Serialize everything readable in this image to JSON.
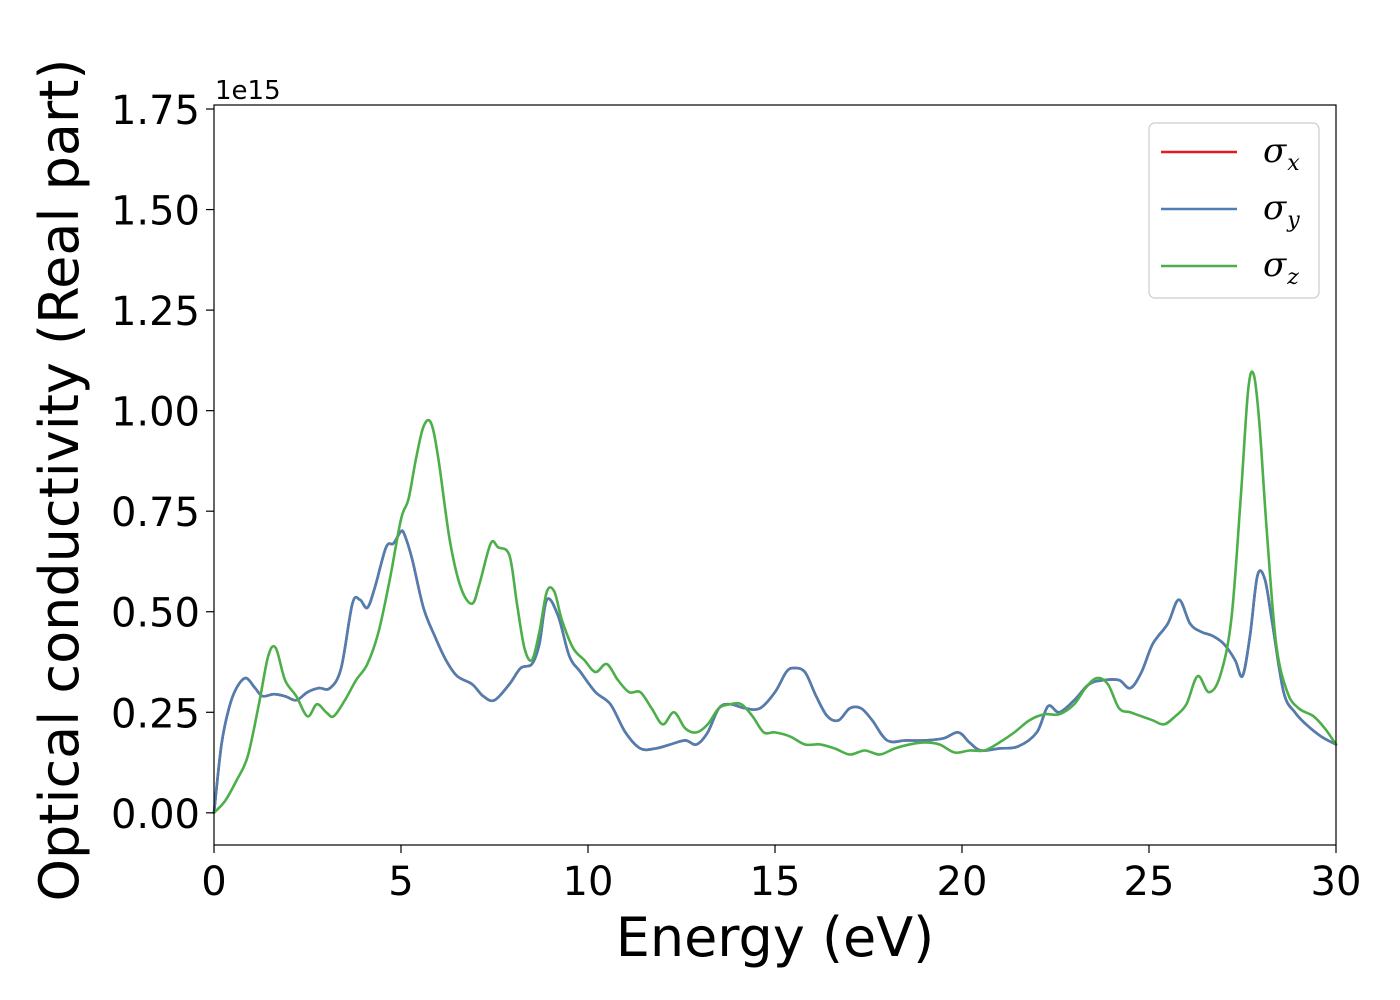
{
  "chart_data": {
    "type": "line",
    "xlabel": "Energy (eV)",
    "ylabel": "Optical conductivity (Real part)",
    "y_offset_label": "1e15",
    "xlim": [
      0,
      30
    ],
    "ylim": [
      -0.08,
      1.76
    ],
    "x_ticks": [
      0,
      5,
      10,
      15,
      20,
      25,
      30
    ],
    "x_tick_labels": [
      "0",
      "5",
      "10",
      "15",
      "20",
      "25",
      "30"
    ],
    "y_ticks": [
      0,
      0.25,
      0.5,
      0.75,
      1.0,
      1.25,
      1.5,
      1.75
    ],
    "y_tick_labels": [
      "0.00",
      "0.25",
      "0.50",
      "0.75",
      "1.00",
      "1.25",
      "1.50",
      "1.75"
    ],
    "grid": false,
    "legend_position": "top-right",
    "series": [
      {
        "name": "σ",
        "sub": "x",
        "color": "#e41a1c",
        "x": [
          0,
          0.2,
          0.4,
          0.6,
          0.85,
          1.1,
          1.3,
          1.6,
          1.9,
          2.2,
          2.5,
          2.8,
          3.1,
          3.4,
          3.7,
          3.9,
          4.1,
          4.3,
          4.6,
          4.8,
          5.0,
          5.1,
          5.3,
          5.6,
          5.9,
          6.2,
          6.5,
          6.9,
          7.2,
          7.5,
          7.9,
          8.2,
          8.5,
          8.7,
          8.9,
          9.2,
          9.5,
          9.8,
          10.2,
          10.6,
          11.0,
          11.4,
          11.8,
          12.2,
          12.6,
          12.9,
          13.2,
          13.5,
          13.8,
          14.2,
          14.6,
          15.0,
          15.3,
          15.5,
          15.8,
          16.1,
          16.4,
          16.7,
          17.0,
          17.3,
          17.6,
          18.0,
          18.5,
          19.0,
          19.5,
          19.9,
          20.2,
          20.5,
          21.0,
          21.5,
          22.0,
          22.3,
          22.6,
          23.0,
          23.4,
          23.8,
          24.2,
          24.5,
          24.8,
          25.1,
          25.5,
          25.8,
          26.1,
          26.4,
          26.7,
          27.0,
          27.3,
          27.5,
          27.7,
          27.9,
          28.1,
          28.3,
          28.6,
          28.9,
          29.2,
          29.6,
          30.0
        ],
        "values": [
          0.0,
          0.17,
          0.26,
          0.31,
          0.335,
          0.31,
          0.29,
          0.295,
          0.29,
          0.28,
          0.3,
          0.31,
          0.31,
          0.36,
          0.52,
          0.53,
          0.51,
          0.56,
          0.66,
          0.67,
          0.7,
          0.69,
          0.63,
          0.51,
          0.44,
          0.38,
          0.34,
          0.32,
          0.29,
          0.28,
          0.32,
          0.36,
          0.37,
          0.42,
          0.53,
          0.49,
          0.39,
          0.35,
          0.3,
          0.27,
          0.2,
          0.16,
          0.16,
          0.17,
          0.18,
          0.17,
          0.2,
          0.26,
          0.27,
          0.26,
          0.26,
          0.3,
          0.35,
          0.36,
          0.35,
          0.29,
          0.24,
          0.23,
          0.26,
          0.26,
          0.23,
          0.18,
          0.18,
          0.18,
          0.185,
          0.2,
          0.175,
          0.155,
          0.16,
          0.165,
          0.2,
          0.265,
          0.25,
          0.28,
          0.32,
          0.33,
          0.33,
          0.31,
          0.35,
          0.42,
          0.47,
          0.53,
          0.47,
          0.45,
          0.44,
          0.42,
          0.38,
          0.34,
          0.44,
          0.59,
          0.58,
          0.47,
          0.3,
          0.25,
          0.22,
          0.19,
          0.17
        ]
      },
      {
        "name": "σ",
        "sub": "y",
        "color": "#4e7fb3",
        "x": [
          0,
          0.2,
          0.4,
          0.6,
          0.85,
          1.1,
          1.3,
          1.6,
          1.9,
          2.2,
          2.5,
          2.8,
          3.1,
          3.4,
          3.7,
          3.9,
          4.1,
          4.3,
          4.6,
          4.8,
          5.0,
          5.1,
          5.3,
          5.6,
          5.9,
          6.2,
          6.5,
          6.9,
          7.2,
          7.5,
          7.9,
          8.2,
          8.5,
          8.7,
          8.9,
          9.2,
          9.5,
          9.8,
          10.2,
          10.6,
          11.0,
          11.4,
          11.8,
          12.2,
          12.6,
          12.9,
          13.2,
          13.5,
          13.8,
          14.2,
          14.6,
          15.0,
          15.3,
          15.5,
          15.8,
          16.1,
          16.4,
          16.7,
          17.0,
          17.3,
          17.6,
          18.0,
          18.5,
          19.0,
          19.5,
          19.9,
          20.2,
          20.5,
          21.0,
          21.5,
          22.0,
          22.3,
          22.6,
          23.0,
          23.4,
          23.8,
          24.2,
          24.5,
          24.8,
          25.1,
          25.5,
          25.8,
          26.1,
          26.4,
          26.7,
          27.0,
          27.3,
          27.5,
          27.7,
          27.9,
          28.1,
          28.3,
          28.6,
          28.9,
          29.2,
          29.6,
          30.0
        ],
        "values": [
          0.0,
          0.17,
          0.26,
          0.31,
          0.335,
          0.31,
          0.29,
          0.295,
          0.29,
          0.28,
          0.3,
          0.31,
          0.31,
          0.36,
          0.52,
          0.53,
          0.51,
          0.56,
          0.66,
          0.67,
          0.7,
          0.69,
          0.63,
          0.51,
          0.44,
          0.38,
          0.34,
          0.32,
          0.29,
          0.28,
          0.32,
          0.36,
          0.37,
          0.42,
          0.53,
          0.49,
          0.39,
          0.35,
          0.3,
          0.27,
          0.2,
          0.16,
          0.16,
          0.17,
          0.18,
          0.17,
          0.2,
          0.26,
          0.27,
          0.26,
          0.26,
          0.3,
          0.35,
          0.36,
          0.35,
          0.29,
          0.24,
          0.23,
          0.26,
          0.26,
          0.23,
          0.18,
          0.18,
          0.18,
          0.185,
          0.2,
          0.175,
          0.155,
          0.16,
          0.165,
          0.2,
          0.265,
          0.25,
          0.28,
          0.32,
          0.33,
          0.33,
          0.31,
          0.35,
          0.42,
          0.47,
          0.53,
          0.47,
          0.45,
          0.44,
          0.42,
          0.38,
          0.34,
          0.44,
          0.59,
          0.58,
          0.47,
          0.3,
          0.25,
          0.22,
          0.19,
          0.17
        ]
      },
      {
        "name": "σ",
        "sub": "z",
        "color": "#4daf4a",
        "x": [
          0,
          0.3,
          0.6,
          0.9,
          1.2,
          1.45,
          1.65,
          1.9,
          2.2,
          2.5,
          2.75,
          3.0,
          3.2,
          3.5,
          3.8,
          4.1,
          4.4,
          4.7,
          5.0,
          5.2,
          5.4,
          5.6,
          5.8,
          6.0,
          6.3,
          6.6,
          6.9,
          7.1,
          7.4,
          7.6,
          7.9,
          8.1,
          8.3,
          8.5,
          8.7,
          8.9,
          9.1,
          9.3,
          9.6,
          9.9,
          10.2,
          10.5,
          10.8,
          11.1,
          11.4,
          11.7,
          12.0,
          12.3,
          12.6,
          12.9,
          13.2,
          13.5,
          13.8,
          14.1,
          14.4,
          14.7,
          15.0,
          15.4,
          15.8,
          16.2,
          16.6,
          17.0,
          17.4,
          17.8,
          18.2,
          18.6,
          19.0,
          19.4,
          19.8,
          20.2,
          20.6,
          21.0,
          21.4,
          21.8,
          22.2,
          22.6,
          23.0,
          23.3,
          23.6,
          23.9,
          24.2,
          24.5,
          24.8,
          25.1,
          25.4,
          25.7,
          26.0,
          26.3,
          26.6,
          26.9,
          27.2,
          27.45,
          27.65,
          27.8,
          27.95,
          28.15,
          28.4,
          28.7,
          29.0,
          29.4,
          29.7,
          30.0
        ],
        "values": [
          0.0,
          0.03,
          0.08,
          0.14,
          0.27,
          0.39,
          0.41,
          0.33,
          0.29,
          0.24,
          0.27,
          0.25,
          0.24,
          0.28,
          0.33,
          0.37,
          0.45,
          0.58,
          0.73,
          0.78,
          0.88,
          0.96,
          0.97,
          0.88,
          0.68,
          0.56,
          0.52,
          0.57,
          0.67,
          0.66,
          0.64,
          0.52,
          0.41,
          0.38,
          0.45,
          0.55,
          0.55,
          0.48,
          0.41,
          0.38,
          0.35,
          0.37,
          0.33,
          0.3,
          0.3,
          0.26,
          0.22,
          0.25,
          0.21,
          0.2,
          0.22,
          0.26,
          0.27,
          0.27,
          0.24,
          0.2,
          0.2,
          0.19,
          0.17,
          0.17,
          0.16,
          0.145,
          0.155,
          0.145,
          0.16,
          0.17,
          0.175,
          0.17,
          0.15,
          0.155,
          0.155,
          0.175,
          0.2,
          0.23,
          0.245,
          0.245,
          0.27,
          0.31,
          0.335,
          0.32,
          0.26,
          0.25,
          0.24,
          0.23,
          0.22,
          0.24,
          0.27,
          0.34,
          0.3,
          0.34,
          0.48,
          0.78,
          1.05,
          1.09,
          0.97,
          0.7,
          0.42,
          0.3,
          0.26,
          0.24,
          0.21,
          0.17
        ]
      }
    ]
  }
}
